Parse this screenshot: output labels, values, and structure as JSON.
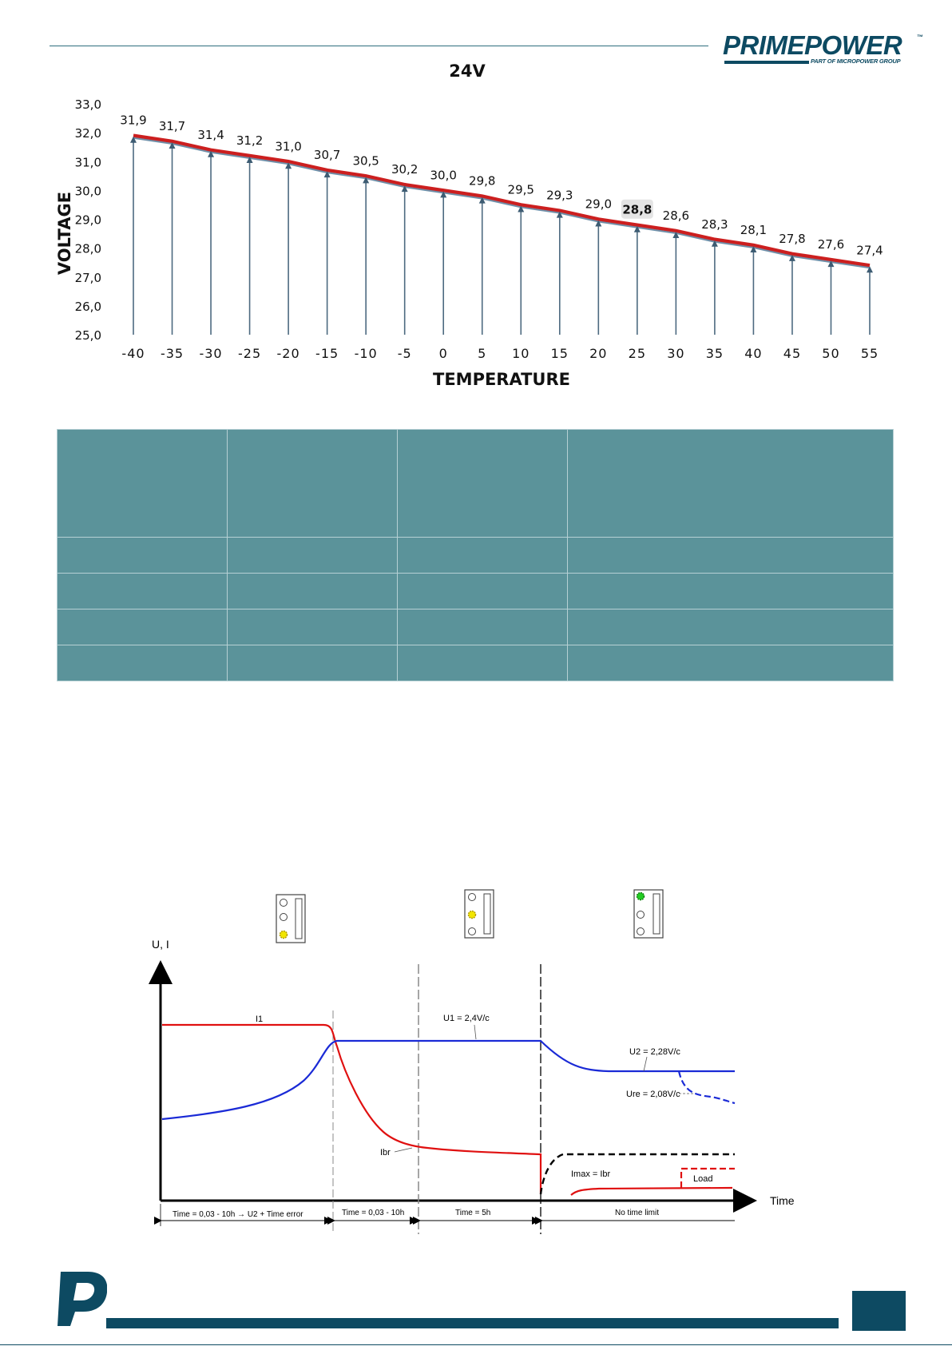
{
  "header": {
    "brand": "PRIMEPOWER",
    "trademark": "™",
    "tagline": "PART OF MICROPOWER GROUP",
    "brand_color": "#0d4a62"
  },
  "chart_data": [
    {
      "type": "line",
      "title": "24V",
      "xlabel": "TEMPERATURE",
      "ylabel": "VOLTAGE",
      "x": [
        -40,
        -35,
        -30,
        -25,
        -20,
        -15,
        -10,
        -5,
        0,
        5,
        10,
        15,
        20,
        25,
        30,
        35,
        40,
        45,
        50,
        55
      ],
      "y": [
        31.9,
        31.7,
        31.4,
        31.2,
        31.0,
        30.7,
        30.5,
        30.2,
        30.0,
        29.8,
        29.5,
        29.3,
        29.0,
        28.8,
        28.6,
        28.3,
        28.1,
        27.8,
        27.6,
        27.4
      ],
      "data_labels": [
        "31,9",
        "31,7",
        "31,4",
        "31,2",
        "31,0",
        "30,7",
        "30,5",
        "30,2",
        "30,0",
        "29,8",
        "29,5",
        "29,3",
        "29,0",
        "28,8",
        "28,6",
        "28,3",
        "28,1",
        "27,8",
        "27,6",
        "27,4"
      ],
      "highlight_index": 13,
      "x_tick_labels": [
        "-40",
        "-35",
        "-30",
        "-25",
        "-20",
        "-15",
        "-10",
        "-5",
        "0",
        "5",
        "10",
        "15",
        "20",
        "25",
        "30",
        "35",
        "40",
        "45",
        "50",
        "55"
      ],
      "y_tick_values": [
        25.0,
        26.0,
        27.0,
        28.0,
        29.0,
        30.0,
        31.0,
        32.0,
        33.0
      ],
      "y_tick_labels": [
        "25,0",
        "26,0",
        "27,0",
        "28,0",
        "29,0",
        "30,0",
        "31,0",
        "32,0",
        "33,0"
      ],
      "ylim": [
        25.0,
        33.0
      ],
      "grid": false,
      "colors": {
        "line": "#cc1f1f",
        "marker_line": "#6f8fa8",
        "droplines": "#4d6a80"
      }
    },
    {
      "type": "line",
      "title": "",
      "ylabel": "U, I",
      "xlabel": "Time",
      "annotations": {
        "i1": "I1",
        "u1": "U1 = 2,4V/c",
        "u2": "U2 = 2,28V/c",
        "ure": "Ure = 2,08V/c",
        "ibr": "Ibr",
        "imax": "Imax = Ibr",
        "load": "Load"
      },
      "phases": [
        "Time = 0,03 - 10h  →  U2 + Time error",
        "Time = 0,03 - 10h",
        "Time = 5h",
        "No time limit"
      ],
      "led_states": [
        "bottom-yellow",
        "middle-yellow",
        "top-green"
      ],
      "colors": {
        "current": "#e01010",
        "voltage": "#1a2ad6",
        "imax": "#000000",
        "led_yellow": "#f2e600",
        "led_green": "#22cc22"
      }
    }
  ],
  "table": {
    "rows": 5,
    "cols": 4,
    "background": "#5b939a"
  }
}
